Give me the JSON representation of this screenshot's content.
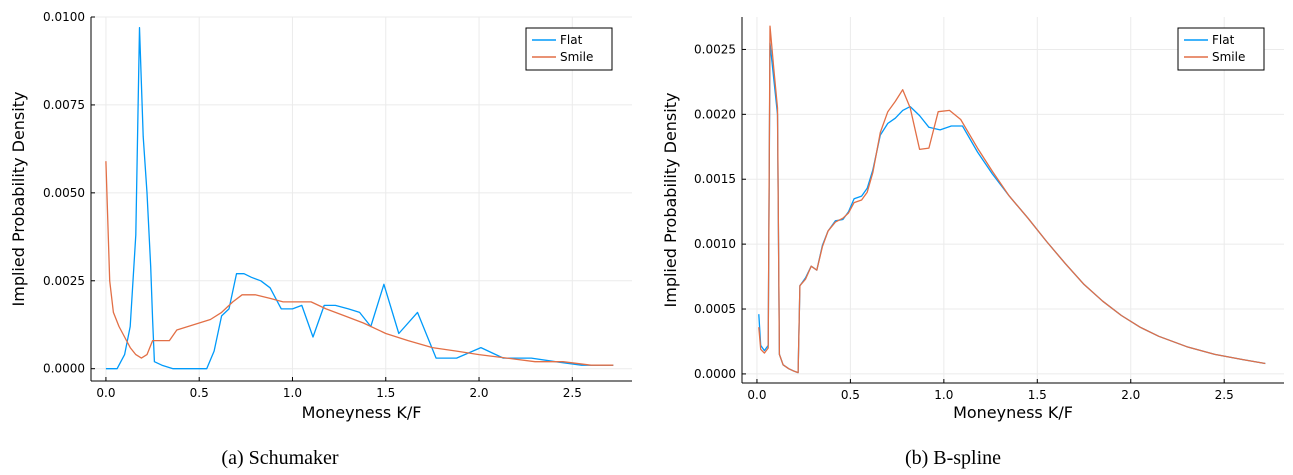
{
  "colors": {
    "flat": "#009AFA",
    "smile": "#E26F46",
    "grid": "#EBEBEB",
    "axis": "#000000"
  },
  "chart_data": [
    {
      "type": "line",
      "caption": "(a)  Schumaker",
      "xlabel": "Moneyness K/F",
      "ylabel": "Implied Probability Density",
      "xlim": [
        -0.08,
        2.82
      ],
      "ylim": [
        -0.00035,
        0.01
      ],
      "xticks": [
        0.0,
        0.5,
        1.0,
        1.5,
        2.0,
        2.5
      ],
      "xtick_labels": [
        "0.0",
        "0.5",
        "1.0",
        "1.5",
        "2.0",
        "2.5"
      ],
      "yticks": [
        0.0,
        0.0025,
        0.005,
        0.0075,
        0.01
      ],
      "ytick_labels": [
        "0.0000",
        "0.0025",
        "0.0050",
        "0.0075",
        "0.0100"
      ],
      "grid": true,
      "legend_position": "top-right",
      "series": [
        {
          "name": "Flat",
          "color_key": "flat",
          "points": [
            [
              0.0,
              0.0
            ],
            [
              0.06,
              0.0
            ],
            [
              0.1,
              0.0004
            ],
            [
              0.13,
              0.0012
            ],
            [
              0.16,
              0.0038
            ],
            [
              0.18,
              0.0097
            ],
            [
              0.2,
              0.0066
            ],
            [
              0.22,
              0.005
            ],
            [
              0.24,
              0.0029
            ],
            [
              0.25,
              0.0014
            ],
            [
              0.26,
              0.0002
            ],
            [
              0.3,
              0.0001
            ],
            [
              0.36,
              0.0
            ],
            [
              0.45,
              0.0
            ],
            [
              0.54,
              0.0
            ],
            [
              0.58,
              0.0005
            ],
            [
              0.62,
              0.0015
            ],
            [
              0.66,
              0.0017
            ],
            [
              0.7,
              0.0027
            ],
            [
              0.74,
              0.0027
            ],
            [
              0.78,
              0.0026
            ],
            [
              0.83,
              0.0025
            ],
            [
              0.88,
              0.0023
            ],
            [
              0.94,
              0.0017
            ],
            [
              1.0,
              0.0017
            ],
            [
              1.05,
              0.0018
            ],
            [
              1.11,
              0.0009
            ],
            [
              1.17,
              0.0018
            ],
            [
              1.23,
              0.0018
            ],
            [
              1.3,
              0.0017
            ],
            [
              1.36,
              0.0016
            ],
            [
              1.42,
              0.0012
            ],
            [
              1.49,
              0.0024
            ],
            [
              1.57,
              0.001
            ],
            [
              1.67,
              0.0016
            ],
            [
              1.77,
              0.0003
            ],
            [
              1.88,
              0.0003
            ],
            [
              2.01,
              0.0006
            ],
            [
              2.13,
              0.0003
            ],
            [
              2.28,
              0.0003
            ],
            [
              2.41,
              0.0002
            ],
            [
              2.55,
              0.0001
            ],
            [
              2.72,
              0.0001
            ]
          ]
        },
        {
          "name": "Smile",
          "color_key": "smile",
          "points": [
            [
              0.0,
              0.0059
            ],
            [
              0.02,
              0.0025
            ],
            [
              0.04,
              0.0016
            ],
            [
              0.07,
              0.0012
            ],
            [
              0.1,
              0.0009
            ],
            [
              0.13,
              0.0006
            ],
            [
              0.16,
              0.0004
            ],
            [
              0.19,
              0.0003
            ],
            [
              0.22,
              0.0004
            ],
            [
              0.25,
              0.0008
            ],
            [
              0.3,
              0.0008
            ],
            [
              0.34,
              0.0008
            ],
            [
              0.38,
              0.0011
            ],
            [
              0.44,
              0.0012
            ],
            [
              0.5,
              0.0013
            ],
            [
              0.56,
              0.0014
            ],
            [
              0.62,
              0.0016
            ],
            [
              0.68,
              0.0019
            ],
            [
              0.73,
              0.0021
            ],
            [
              0.8,
              0.0021
            ],
            [
              0.88,
              0.002
            ],
            [
              0.95,
              0.0019
            ],
            [
              1.02,
              0.0019
            ],
            [
              1.1,
              0.0019
            ],
            [
              1.18,
              0.0017
            ],
            [
              1.28,
              0.0015
            ],
            [
              1.38,
              0.0013
            ],
            [
              1.5,
              0.001
            ],
            [
              1.62,
              0.0008
            ],
            [
              1.75,
              0.0006
            ],
            [
              1.88,
              0.0005
            ],
            [
              2.0,
              0.0004
            ],
            [
              2.15,
              0.0003
            ],
            [
              2.3,
              0.0002
            ],
            [
              2.45,
              0.0002
            ],
            [
              2.6,
              0.0001
            ],
            [
              2.72,
              0.0001
            ]
          ]
        }
      ]
    },
    {
      "type": "line",
      "caption": "(b)  B-spline",
      "xlabel": "Moneyness K/F",
      "ylabel": "Implied Probability Density",
      "xlim": [
        -0.08,
        2.82
      ],
      "ylim": [
        -7e-05,
        0.00275
      ],
      "xticks": [
        0.0,
        0.5,
        1.0,
        1.5,
        2.0,
        2.5
      ],
      "xtick_labels": [
        "0.0",
        "0.5",
        "1.0",
        "1.5",
        "2.0",
        "2.5"
      ],
      "yticks": [
        0.0,
        0.0005,
        0.001,
        0.0015,
        0.002,
        0.0025
      ],
      "ytick_labels": [
        "0.0000",
        "0.0005",
        "0.0010",
        "0.0015",
        "0.0020",
        "0.0025"
      ],
      "grid": true,
      "legend_position": "top-right",
      "series": [
        {
          "name": "Flat",
          "color_key": "flat",
          "points": [
            [
              0.01,
              0.00046
            ],
            [
              0.02,
              0.00022
            ],
            [
              0.04,
              0.00018
            ],
            [
              0.06,
              0.00022
            ],
            [
              0.07,
              0.00255
            ],
            [
              0.09,
              0.00227
            ],
            [
              0.11,
              0.002
            ],
            [
              0.12,
              0.00015
            ],
            [
              0.14,
              7e-05
            ],
            [
              0.17,
              4e-05
            ],
            [
              0.2,
              2e-05
            ],
            [
              0.22,
              1e-05
            ],
            [
              0.23,
              0.00068
            ],
            [
              0.26,
              0.00074
            ],
            [
              0.29,
              0.00083
            ],
            [
              0.32,
              0.0008
            ],
            [
              0.35,
              0.00099
            ],
            [
              0.38,
              0.0011
            ],
            [
              0.42,
              0.00118
            ],
            [
              0.46,
              0.00119
            ],
            [
              0.49,
              0.00125
            ],
            [
              0.52,
              0.00135
            ],
            [
              0.56,
              0.00137
            ],
            [
              0.59,
              0.00143
            ],
            [
              0.62,
              0.00157
            ],
            [
              0.66,
              0.00184
            ],
            [
              0.7,
              0.00193
            ],
            [
              0.74,
              0.00197
            ],
            [
              0.78,
              0.00203
            ],
            [
              0.82,
              0.00206
            ],
            [
              0.87,
              0.00199
            ],
            [
              0.92,
              0.0019
            ],
            [
              0.98,
              0.00188
            ],
            [
              1.04,
              0.00191
            ],
            [
              1.1,
              0.00191
            ],
            [
              1.18,
              0.00171
            ],
            [
              1.26,
              0.00154
            ],
            [
              1.35,
              0.00137
            ],
            [
              1.45,
              0.0012
            ],
            [
              1.55,
              0.00102
            ],
            [
              1.65,
              0.00085
            ],
            [
              1.75,
              0.00069
            ],
            [
              1.85,
              0.00056
            ],
            [
              1.95,
              0.00045
            ],
            [
              2.05,
              0.00036
            ],
            [
              2.15,
              0.00029
            ],
            [
              2.3,
              0.00021
            ],
            [
              2.45,
              0.00015
            ],
            [
              2.6,
              0.00011
            ],
            [
              2.72,
              8e-05
            ]
          ]
        },
        {
          "name": "Smile",
          "color_key": "smile",
          "points": [
            [
              0.01,
              0.00036
            ],
            [
              0.02,
              0.00019
            ],
            [
              0.04,
              0.00016
            ],
            [
              0.06,
              0.0002
            ],
            [
              0.07,
              0.00268
            ],
            [
              0.09,
              0.00235
            ],
            [
              0.11,
              0.00205
            ],
            [
              0.12,
              0.00015
            ],
            [
              0.14,
              7e-05
            ],
            [
              0.17,
              4e-05
            ],
            [
              0.2,
              2e-05
            ],
            [
              0.22,
              1e-05
            ],
            [
              0.23,
              0.00068
            ],
            [
              0.26,
              0.00073
            ],
            [
              0.29,
              0.00083
            ],
            [
              0.32,
              0.0008
            ],
            [
              0.35,
              0.00098
            ],
            [
              0.38,
              0.0011
            ],
            [
              0.42,
              0.00117
            ],
            [
              0.46,
              0.0012
            ],
            [
              0.49,
              0.00124
            ],
            [
              0.52,
              0.00132
            ],
            [
              0.56,
              0.00134
            ],
            [
              0.59,
              0.0014
            ],
            [
              0.62,
              0.00155
            ],
            [
              0.66,
              0.00186
            ],
            [
              0.7,
              0.00202
            ],
            [
              0.74,
              0.0021
            ],
            [
              0.78,
              0.00219
            ],
            [
              0.82,
              0.00205
            ],
            [
              0.87,
              0.00173
            ],
            [
              0.92,
              0.00174
            ],
            [
              0.97,
              0.00202
            ],
            [
              1.03,
              0.00203
            ],
            [
              1.09,
              0.00196
            ],
            [
              1.18,
              0.00174
            ],
            [
              1.26,
              0.00156
            ],
            [
              1.35,
              0.00137
            ],
            [
              1.45,
              0.0012
            ],
            [
              1.55,
              0.00102
            ],
            [
              1.65,
              0.00085
            ],
            [
              1.75,
              0.00069
            ],
            [
              1.85,
              0.00056
            ],
            [
              1.95,
              0.00045
            ],
            [
              2.05,
              0.00036
            ],
            [
              2.15,
              0.00029
            ],
            [
              2.3,
              0.00021
            ],
            [
              2.45,
              0.00015
            ],
            [
              2.6,
              0.00011
            ],
            [
              2.72,
              8e-05
            ]
          ]
        }
      ]
    }
  ]
}
